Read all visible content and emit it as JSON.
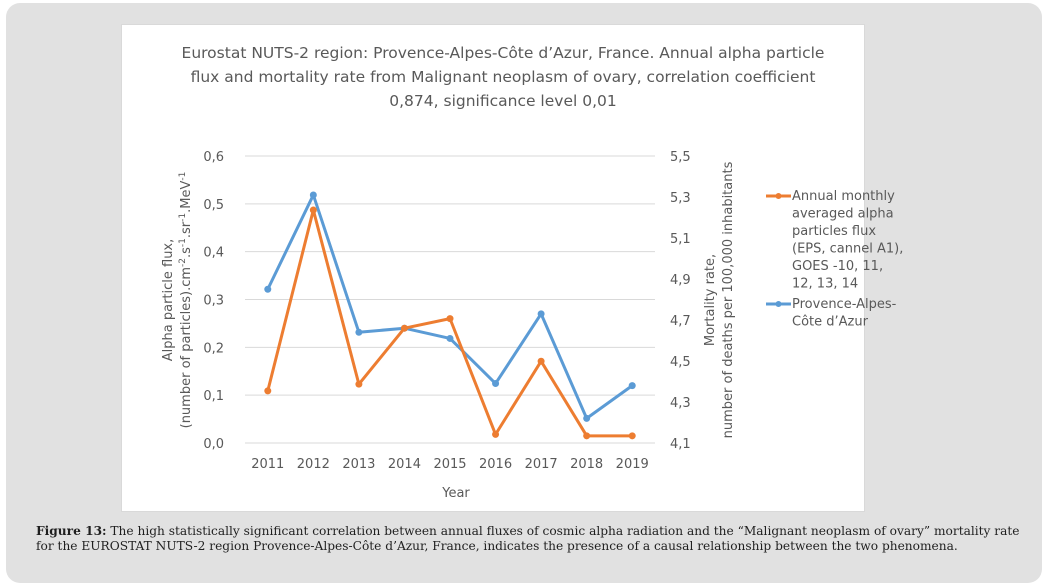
{
  "chart_data": {
    "type": "line",
    "title_lines": [
      "Eurostat NUTS-2 region: Provence-Alpes-Côte  d’Azur, France. Annual alpha particle",
      "flux and mortality rate from Malignant neoplasm of ovary, correlation coefficient",
      "0,874, significance level 0,01"
    ],
    "categories": [
      "2011",
      "2012",
      "2013",
      "2014",
      "2015",
      "2016",
      "2017",
      "2018",
      "2019"
    ],
    "xlabel": "Year",
    "y_left": {
      "label_lines": [
        "Alpha particle flux,",
        "(number of particles).cm-2.s-1.sr-1.MeV-1"
      ],
      "ylim": [
        0.0,
        0.6
      ],
      "ticks": [
        "0,0",
        "0,1",
        "0,2",
        "0,3",
        "0,4",
        "0,5",
        "0,6"
      ],
      "tick_values": [
        0.0,
        0.1,
        0.2,
        0.3,
        0.4,
        0.5,
        0.6
      ]
    },
    "y_right": {
      "label_lines": [
        "Mortality rate,",
        "number of deaths per 100,000 inhabitants"
      ],
      "ylim": [
        4.1,
        5.5
      ],
      "ticks": [
        "4,1",
        "4,3",
        "4,5",
        "4,7",
        "4,9",
        "5,1",
        "5,3",
        "5,5"
      ],
      "tick_values": [
        4.1,
        4.3,
        4.5,
        4.7,
        4.9,
        5.1,
        5.3,
        5.5
      ]
    },
    "grid": true,
    "legend_position": "right",
    "series": [
      {
        "name": "Annual monthly averaged alpha particles flux (EPS, cannel A1), GOES -10, 11, 12, 13, 14",
        "legend_lines": [
          "Annual monthly",
          "averaged alpha",
          "particles flux",
          "(EPS, cannel A1),",
          "GOES -10, 11,",
          "12, 13, 14"
        ],
        "axis": "left",
        "color": "#ed7d31",
        "values": [
          0.109,
          0.487,
          0.123,
          0.24,
          0.26,
          0.018,
          0.171,
          0.015,
          0.015
        ]
      },
      {
        "name": "Provence-Alpes-Côte d’Azur",
        "legend_lines": [
          "Provence-Alpes-",
          "Côte d’Azur"
        ],
        "axis": "right",
        "color": "#5b9bd5",
        "values": [
          4.85,
          5.31,
          4.64,
          4.66,
          4.61,
          4.39,
          4.73,
          4.22,
          4.38
        ]
      }
    ]
  },
  "caption": {
    "label": "Figure 13:",
    "text": " The high statistically significant correlation between annual fluxes of cosmic alpha radiation and the “Malignant neoplasm of ovary” mortality rate for the EUROSTAT NUTS-2 region Provence-Alpes-Côte d’Azur, France, indicates the presence of a causal relationship between the two phenomena."
  }
}
